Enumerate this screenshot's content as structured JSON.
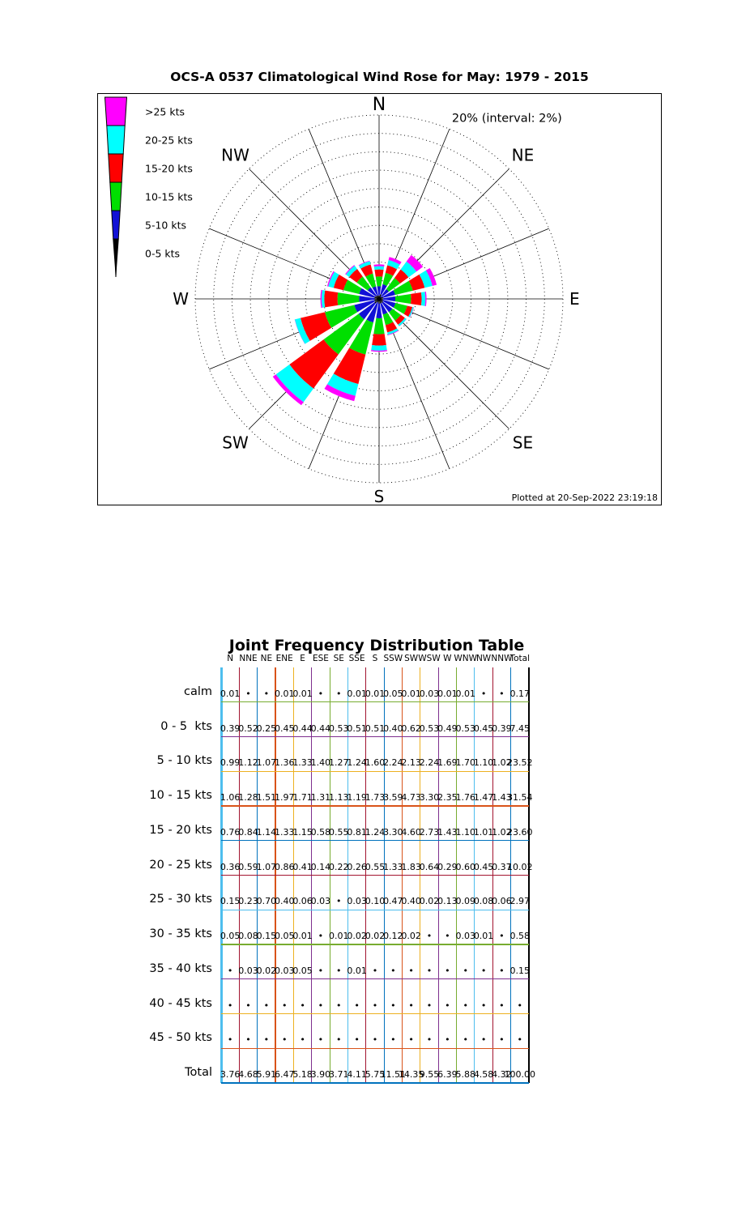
{
  "rose": {
    "title": "OCS-A 0537 Climatological Wind Rose for May: 1979 - 2015",
    "footer": "Plotted at 20-Sep-2022 23:19:18"
  },
  "chart_data": {
    "type": "windrose",
    "title": "OCS-A 0537 Climatological Wind Rose for May: 1979 - 2015",
    "radial_axis_label": "20% (interval: 2%)",
    "ring_interval_pct": 2,
    "ring_max_pct": 20,
    "calm_pct": 0.17,
    "legend_position": "upper left",
    "compass_labels": [
      "N",
      "NE",
      "E",
      "SE",
      "S",
      "SW",
      "W",
      "NW"
    ],
    "directions": [
      "N",
      "NNE",
      "NE",
      "ENE",
      "E",
      "ESE",
      "SE",
      "SSE",
      "S",
      "SSW",
      "SW",
      "WSW",
      "W",
      "WNW",
      "NW",
      "NNW"
    ],
    "speed_bins": [
      {
        "name": "0-5 kts",
        "color": "#000000",
        "values": [
          0.39,
          0.52,
          0.25,
          0.45,
          0.44,
          0.44,
          0.53,
          0.51,
          0.51,
          0.4,
          0.62,
          0.53,
          0.49,
          0.53,
          0.45,
          0.39
        ]
      },
      {
        "name": "5-10 kts",
        "color": "#1111D6",
        "values": [
          0.99,
          1.12,
          1.07,
          1.36,
          1.33,
          1.4,
          1.27,
          1.24,
          1.6,
          2.24,
          2.13,
          2.24,
          1.69,
          1.7,
          1.1,
          1.02
        ]
      },
      {
        "name": "10-15 kts",
        "color": "#00DF00",
        "values": [
          1.06,
          1.28,
          1.51,
          1.97,
          1.71,
          1.31,
          1.13,
          1.19,
          1.73,
          3.59,
          4.73,
          3.3,
          2.35,
          1.76,
          1.47,
          1.43
        ]
      },
      {
        "name": "15-20 kts",
        "color": "#FF0000",
        "values": [
          0.76,
          0.84,
          1.14,
          1.33,
          1.15,
          0.58,
          0.55,
          0.81,
          1.24,
          3.3,
          4.6,
          2.73,
          1.43,
          1.1,
          1.01,
          1.02
        ]
      },
      {
        "name": "20-25 kts",
        "color": "#00FFFF",
        "values": [
          0.36,
          0.59,
          1.07,
          0.86,
          0.41,
          0.14,
          0.22,
          0.26,
          0.55,
          1.33,
          1.83,
          0.64,
          0.29,
          0.6,
          0.45,
          0.37
        ]
      },
      {
        "name": ">25 kts",
        "color": "#FF00FF",
        "values": [
          0.2,
          0.34,
          0.87,
          0.48,
          0.12,
          0.03,
          0.01,
          0.06,
          0.12,
          0.59,
          0.42,
          0.02,
          0.13,
          0.12,
          0.09,
          0.06
        ]
      }
    ]
  },
  "table": {
    "title": "Joint Frequency Distribution Table",
    "columns": [
      "N",
      "NNE",
      "NE",
      "ENE",
      "E",
      "ESE",
      "SE",
      "SSE",
      "S",
      "SSW",
      "SW",
      "WSW",
      "W",
      "WNW",
      "NW",
      "NNW",
      "Total"
    ],
    "rows": [
      {
        "label": "calm",
        "cells": [
          "0.01",
          "•",
          "•",
          "0.01",
          "0.01",
          "•",
          "•",
          "0.01",
          "0.01",
          "0.05",
          "0.01",
          "0.03",
          "0.01",
          "0.01",
          "•",
          "•",
          "0.17"
        ]
      },
      {
        "label": "0 - 5  kts",
        "cells": [
          "0.39",
          "0.52",
          "0.25",
          "0.45",
          "0.44",
          "0.44",
          "0.53",
          "0.51",
          "0.51",
          "0.40",
          "0.62",
          "0.53",
          "0.49",
          "0.53",
          "0.45",
          "0.39",
          "7.45"
        ]
      },
      {
        "label": "5 - 10 kts",
        "cells": [
          "0.99",
          "1.12",
          "1.07",
          "1.36",
          "1.33",
          "1.40",
          "1.27",
          "1.24",
          "1.60",
          "2.24",
          "2.13",
          "2.24",
          "1.69",
          "1.70",
          "1.10",
          "1.02",
          "23.52"
        ]
      },
      {
        "label": "10 - 15 kts",
        "cells": [
          "1.06",
          "1.28",
          "1.51",
          "1.97",
          "1.71",
          "1.31",
          "1.13",
          "1.19",
          "1.73",
          "3.59",
          "4.73",
          "3.30",
          "2.35",
          "1.76",
          "1.47",
          "1.43",
          "31.54"
        ]
      },
      {
        "label": "15 - 20 kts",
        "cells": [
          "0.76",
          "0.84",
          "1.14",
          "1.33",
          "1.15",
          "0.58",
          "0.55",
          "0.81",
          "1.24",
          "3.30",
          "4.60",
          "2.73",
          "1.43",
          "1.10",
          "1.01",
          "1.02",
          "23.60"
        ]
      },
      {
        "label": "20 - 25 kts",
        "cells": [
          "0.36",
          "0.59",
          "1.07",
          "0.86",
          "0.41",
          "0.14",
          "0.22",
          "0.26",
          "0.55",
          "1.33",
          "1.83",
          "0.64",
          "0.29",
          "0.60",
          "0.45",
          "0.37",
          "10.02"
        ]
      },
      {
        "label": "25 - 30 kts",
        "cells": [
          "0.15",
          "0.23",
          "0.70",
          "0.40",
          "0.06",
          "0.03",
          "•",
          "0.03",
          "0.10",
          "0.47",
          "0.40",
          "0.02",
          "0.13",
          "0.09",
          "0.08",
          "0.06",
          "2.97"
        ]
      },
      {
        "label": "30 - 35 kts",
        "cells": [
          "0.05",
          "0.08",
          "0.15",
          "0.05",
          "0.01",
          "•",
          "0.01",
          "0.02",
          "0.02",
          "0.12",
          "0.02",
          "•",
          "•",
          "0.03",
          "0.01",
          "•",
          "0.58"
        ]
      },
      {
        "label": "35 - 40 kts",
        "cells": [
          "•",
          "0.03",
          "0.02",
          "0.03",
          "0.05",
          "•",
          "•",
          "0.01",
          "•",
          "•",
          "•",
          "•",
          "•",
          "•",
          "•",
          "•",
          "0.15"
        ]
      },
      {
        "label": "40 - 45 kts",
        "cells": [
          "•",
          "•",
          "•",
          "•",
          "•",
          "•",
          "•",
          "•",
          "•",
          "•",
          "•",
          "•",
          "•",
          "•",
          "•",
          "•",
          "•"
        ]
      },
      {
        "label": "45 - 50 kts",
        "cells": [
          "•",
          "•",
          "•",
          "•",
          "•",
          "•",
          "•",
          "•",
          "•",
          "•",
          "•",
          "•",
          "•",
          "•",
          "•",
          "•",
          "•"
        ]
      },
      {
        "label": "Total",
        "cells": [
          "3.76",
          "4.68",
          "5.91",
          "6.47",
          "5.18",
          "3.90",
          "3.71",
          "4.11",
          "5.75",
          "11.51",
          "14.35",
          "9.55",
          "6.39",
          "5.88",
          "4.58",
          "4.32",
          "100.00"
        ]
      }
    ]
  }
}
